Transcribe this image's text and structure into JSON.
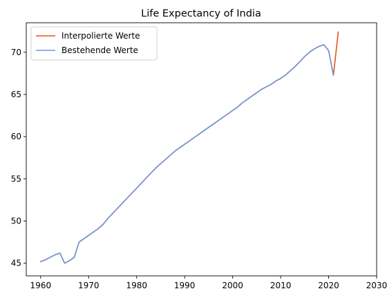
{
  "chart_data": {
    "type": "line",
    "title": "Life Expectancy of India",
    "xlabel": "",
    "ylabel": "",
    "xlim": [
      1957.0,
      2030.0
    ],
    "ylim": [
      43.5,
      73.5
    ],
    "xticks": [
      1960,
      1970,
      1980,
      1990,
      2000,
      2010,
      2020,
      2030
    ],
    "yticks": [
      45,
      50,
      55,
      60,
      65,
      70
    ],
    "grid": false,
    "legend_position": "upper-left",
    "series": [
      {
        "name": "Interpolierte Werte",
        "color": "#e8501e",
        "x": [
          1960,
          1961,
          1962,
          1963,
          1964,
          1965,
          1966,
          1967,
          1968,
          1969,
          1970,
          1971,
          1972,
          1973,
          1974,
          1975,
          1976,
          1977,
          1978,
          1979,
          1980,
          1981,
          1982,
          1983,
          1984,
          1985,
          1986,
          1987,
          1988,
          1989,
          1990,
          1991,
          1992,
          1993,
          1994,
          1995,
          1996,
          1997,
          1998,
          1999,
          2000,
          2001,
          2002,
          2003,
          2004,
          2005,
          2006,
          2007,
          2008,
          2009,
          2010,
          2011,
          2012,
          2013,
          2014,
          2015,
          2016,
          2017,
          2018,
          2019,
          2020,
          2021,
          2022
        ],
        "y": [
          45.2,
          45.4,
          45.7,
          46.0,
          46.2,
          45.0,
          45.3,
          45.7,
          47.5,
          47.9,
          48.3,
          48.7,
          49.1,
          49.6,
          50.3,
          50.9,
          51.5,
          52.1,
          52.7,
          53.3,
          53.9,
          54.5,
          55.1,
          55.7,
          56.3,
          56.8,
          57.3,
          57.8,
          58.3,
          58.7,
          59.1,
          59.5,
          59.9,
          60.3,
          60.7,
          61.1,
          61.5,
          61.9,
          62.3,
          62.7,
          63.1,
          63.5,
          64.0,
          64.4,
          64.8,
          65.2,
          65.6,
          65.9,
          66.2,
          66.6,
          66.9,
          67.3,
          67.8,
          68.3,
          68.9,
          69.5,
          70.0,
          70.4,
          70.7,
          70.9,
          70.2,
          67.3,
          72.4
        ]
      },
      {
        "name": "Bestehende Werte",
        "color": "#6d96d8",
        "x": [
          1960,
          1961,
          1962,
          1963,
          1964,
          1965,
          1966,
          1967,
          1968,
          1969,
          1970,
          1971,
          1972,
          1973,
          1974,
          1975,
          1976,
          1977,
          1978,
          1979,
          1980,
          1981,
          1982,
          1983,
          1984,
          1985,
          1986,
          1987,
          1988,
          1989,
          1990,
          1991,
          1992,
          1993,
          1994,
          1995,
          1996,
          1997,
          1998,
          1999,
          2000,
          2001,
          2002,
          2003,
          2004,
          2005,
          2006,
          2007,
          2008,
          2009,
          2010,
          2011,
          2012,
          2013,
          2014,
          2015,
          2016,
          2017,
          2018,
          2019,
          2020,
          2021
        ],
        "y": [
          45.2,
          45.4,
          45.7,
          46.0,
          46.2,
          45.0,
          45.3,
          45.7,
          47.5,
          47.9,
          48.3,
          48.7,
          49.1,
          49.6,
          50.3,
          50.9,
          51.5,
          52.1,
          52.7,
          53.3,
          53.9,
          54.5,
          55.1,
          55.7,
          56.3,
          56.8,
          57.3,
          57.8,
          58.3,
          58.7,
          59.1,
          59.5,
          59.9,
          60.3,
          60.7,
          61.1,
          61.5,
          61.9,
          62.3,
          62.7,
          63.1,
          63.5,
          64.0,
          64.4,
          64.8,
          65.2,
          65.6,
          65.9,
          66.2,
          66.6,
          66.9,
          67.3,
          67.8,
          68.3,
          68.9,
          69.5,
          70.0,
          70.4,
          70.7,
          70.9,
          70.2,
          67.3
        ]
      }
    ]
  }
}
